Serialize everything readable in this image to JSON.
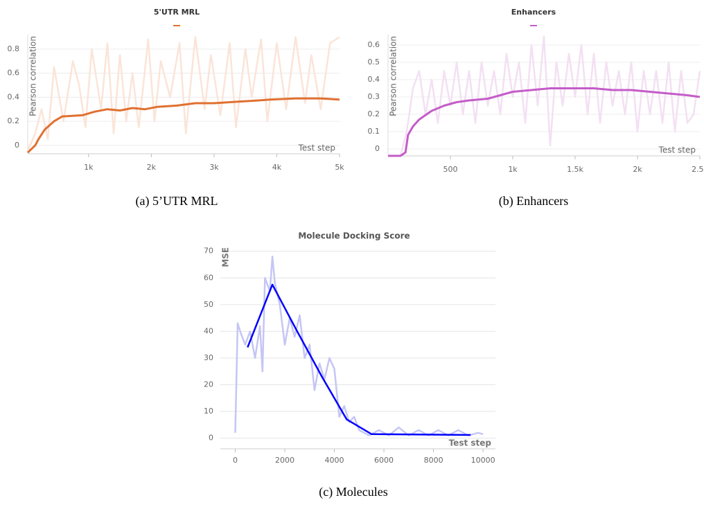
{
  "chart_data": [
    {
      "type": "line",
      "title": "5'UTR MRL",
      "ylabel": "Pearson correlation",
      "xlabel": "Test step",
      "caption": "(a) 5’UTR MRL",
      "xlim": [
        30,
        5000
      ],
      "ylim": [
        -0.07,
        0.92
      ],
      "grid": true,
      "xticks": [
        {
          "value": 1000,
          "label": "1k"
        },
        {
          "value": 2000,
          "label": "2k"
        },
        {
          "value": 3000,
          "label": "3k"
        },
        {
          "value": 4000,
          "label": "4k"
        },
        {
          "value": 5000,
          "label": "5k"
        }
      ],
      "yticks": [
        0,
        0.2,
        0.4,
        0.6,
        0.8
      ],
      "series": [
        {
          "color": "#fbe4d8",
          "x": [
            30,
            150,
            250,
            350,
            450,
            600,
            750,
            850,
            950,
            1050,
            1200,
            1300,
            1400,
            1500,
            1600,
            1700,
            1800,
            1950,
            2050,
            2150,
            2300,
            2450,
            2550,
            2700,
            2850,
            2950,
            3100,
            3250,
            3350,
            3500,
            3600,
            3750,
            3850,
            4000,
            4150,
            4300,
            4450,
            4550,
            4700,
            4850,
            5000
          ],
          "values": [
            -0.05,
            0.1,
            0.3,
            0.05,
            0.65,
            0.2,
            0.7,
            0.5,
            0.15,
            0.8,
            0.3,
            0.85,
            0.1,
            0.75,
            0.2,
            0.6,
            0.15,
            0.88,
            0.2,
            0.7,
            0.4,
            0.85,
            0.1,
            0.9,
            0.3,
            0.75,
            0.25,
            0.85,
            0.15,
            0.8,
            0.4,
            0.88,
            0.2,
            0.85,
            0.3,
            0.9,
            0.35,
            0.75,
            0.3,
            0.85,
            0.9
          ]
        },
        {
          "color": "#e07030",
          "x": [
            30,
            150,
            200,
            300,
            450,
            580,
            900,
            1100,
            1300,
            1500,
            1700,
            1900,
            2100,
            2400,
            2700,
            3000,
            3300,
            3600,
            3900,
            4300,
            4700,
            5000
          ],
          "values": [
            -0.06,
            0,
            0.05,
            0.13,
            0.2,
            0.24,
            0.25,
            0.28,
            0.3,
            0.29,
            0.31,
            0.3,
            0.32,
            0.33,
            0.35,
            0.35,
            0.36,
            0.37,
            0.38,
            0.39,
            0.39,
            0.38
          ]
        }
      ]
    },
    {
      "type": "line",
      "title": "Enhancers",
      "ylabel": "Pearson correlation",
      "xlabel": "Test step",
      "caption": "(b) Enhancers",
      "xlim": [
        0,
        2500
      ],
      "ylim": [
        -0.04,
        0.66
      ],
      "grid": true,
      "xticks": [
        500,
        {
          "value": 1000,
          "label": "1k"
        },
        {
          "value": 1500,
          "label": "1.5k"
        },
        {
          "value": 2000,
          "label": "2k"
        },
        {
          "value": 2500,
          "label": "2.5k"
        }
      ],
      "yticks": [
        0,
        0.1,
        0.2,
        0.3,
        0.4,
        0.5,
        0.6
      ],
      "series": [
        {
          "color": "#f3e0f3",
          "x": [
            0,
            100,
            150,
            200,
            250,
            300,
            350,
            400,
            450,
            500,
            550,
            600,
            650,
            700,
            750,
            800,
            850,
            900,
            950,
            1000,
            1050,
            1100,
            1150,
            1200,
            1250,
            1300,
            1350,
            1400,
            1450,
            1500,
            1550,
            1600,
            1650,
            1700,
            1750,
            1800,
            1850,
            1900,
            1950,
            2000,
            2050,
            2100,
            2150,
            2200,
            2250,
            2300,
            2350,
            2400,
            2450,
            2500
          ],
          "values": [
            -0.04,
            -0.04,
            0.1,
            0.35,
            0.45,
            0.2,
            0.4,
            0.15,
            0.45,
            0.25,
            0.5,
            0.2,
            0.45,
            0.15,
            0.5,
            0.25,
            0.45,
            0.2,
            0.55,
            0.3,
            0.5,
            0.15,
            0.6,
            0.25,
            0.65,
            0.02,
            0.5,
            0.25,
            0.55,
            0.3,
            0.6,
            0.2,
            0.55,
            0.15,
            0.5,
            0.25,
            0.45,
            0.2,
            0.5,
            0.1,
            0.45,
            0.2,
            0.45,
            0.15,
            0.5,
            0.1,
            0.45,
            0.15,
            0.2,
            0.45
          ]
        },
        {
          "color": "#c45cc8",
          "x": [
            0,
            100,
            140,
            160,
            200,
            250,
            350,
            450,
            550,
            650,
            800,
            900,
            1000,
            1150,
            1300,
            1550,
            1650,
            1800,
            1950,
            2100,
            2250,
            2400,
            2500
          ],
          "values": [
            -0.04,
            -0.04,
            -0.02,
            0.08,
            0.13,
            0.17,
            0.22,
            0.25,
            0.27,
            0.28,
            0.29,
            0.31,
            0.33,
            0.34,
            0.35,
            0.35,
            0.35,
            0.34,
            0.34,
            0.33,
            0.32,
            0.31,
            0.3
          ]
        }
      ]
    },
    {
      "type": "line",
      "title": "Molecule Docking Score",
      "ylabel": "MSE",
      "xlabel": "Test step",
      "caption": "(c) Molecules",
      "xlim": [
        -600,
        10500
      ],
      "ylim": [
        -4,
        72
      ],
      "grid": true,
      "xticks": [
        0,
        2000,
        4000,
        6000,
        8000,
        10000
      ],
      "yticks": [
        0,
        10,
        20,
        30,
        40,
        50,
        60,
        70
      ],
      "series": [
        {
          "color": "#c5c5f5",
          "x": [
            0,
            100,
            200,
            400,
            600,
            800,
            1000,
            1100,
            1200,
            1400,
            1500,
            1600,
            1800,
            2000,
            2200,
            2400,
            2600,
            2800,
            3000,
            3200,
            3400,
            3600,
            3800,
            4000,
            4200,
            4400,
            4600,
            4800,
            5000,
            5400,
            5800,
            6200,
            6600,
            7000,
            7400,
            7800,
            8200,
            8600,
            9000,
            9400,
            9800,
            10000
          ],
          "values": [
            2,
            43,
            40,
            35,
            40,
            30,
            42,
            25,
            60,
            55,
            68,
            58,
            50,
            35,
            45,
            38,
            46,
            30,
            35,
            18,
            28,
            22,
            30,
            26,
            8,
            12,
            6,
            8,
            3,
            1,
            3,
            1,
            4,
            1,
            3,
            1,
            3,
            1,
            3,
            1,
            2,
            1.5
          ]
        },
        {
          "color": "#0000ff",
          "x": [
            500,
            1500,
            2500,
            3500,
            4500,
            5500,
            9500
          ],
          "values": [
            34,
            57.5,
            40,
            23,
            7,
            1.5,
            1.2
          ]
        }
      ]
    }
  ]
}
